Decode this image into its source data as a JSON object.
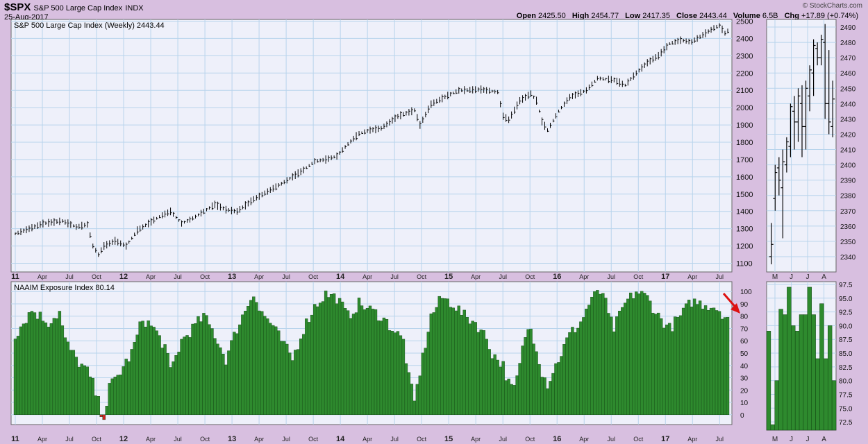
{
  "header": {
    "symbol": "$SPX",
    "name": "S&P 500 Large Cap Index",
    "exchange": "INDX",
    "date": "25-Aug-2017",
    "watermark": "© StockCharts.com",
    "ohlc": {
      "open_label": "Open",
      "open": "2425.50",
      "high_label": "High",
      "high": "2454.77",
      "low_label": "Low",
      "low": "2417.35",
      "close_label": "Close",
      "close": "2443.44",
      "volume_label": "Volume",
      "volume": "6.5B",
      "chg_label": "Chg",
      "chg": "+17.89 (+0.74%)"
    }
  },
  "colors": {
    "page_bg": "#d8bfe0",
    "plot_bg": "#eef0fa",
    "grid": "#b8d4ec",
    "bar_green": "#2e8a2e",
    "bar_red": "#cc2222",
    "arrow": "#dd1111"
  },
  "chart_data": [
    {
      "type": "line",
      "title": "S&P 500 Large Cap Index (Weekly) 2443.44",
      "ylim": [
        1050,
        2510
      ],
      "y_ticks": [
        1100,
        1200,
        1300,
        1400,
        1500,
        1600,
        1700,
        1800,
        1900,
        2000,
        2100,
        2200,
        2300,
        2400,
        2500
      ],
      "x_ticks": [
        "11",
        "Apr",
        "Jul",
        "Oct",
        "12",
        "Apr",
        "Jul",
        "Oct",
        "13",
        "Apr",
        "Jul",
        "Oct",
        "14",
        "Apr",
        "Jul",
        "Oct",
        "15",
        "Apr",
        "Jul",
        "Oct",
        "16",
        "Apr",
        "Jul",
        "Oct",
        "17",
        "Apr",
        "Jul"
      ],
      "x_year_labels": [
        "11",
        "12",
        "13",
        "14",
        "15",
        "16",
        "17"
      ],
      "keypoints": [
        {
          "x": 0,
          "y": 1270
        },
        {
          "x": 10,
          "y": 1330
        },
        {
          "x": 17,
          "y": 1345
        },
        {
          "x": 22,
          "y": 1310
        },
        {
          "x": 26,
          "y": 1325
        },
        {
          "x": 28,
          "y": 1200
        },
        {
          "x": 30,
          "y": 1150
        },
        {
          "x": 32,
          "y": 1200
        },
        {
          "x": 36,
          "y": 1230
        },
        {
          "x": 40,
          "y": 1200
        },
        {
          "x": 44,
          "y": 1290
        },
        {
          "x": 52,
          "y": 1370
        },
        {
          "x": 56,
          "y": 1400
        },
        {
          "x": 60,
          "y": 1330
        },
        {
          "x": 64,
          "y": 1360
        },
        {
          "x": 72,
          "y": 1440
        },
        {
          "x": 76,
          "y": 1410
        },
        {
          "x": 80,
          "y": 1400
        },
        {
          "x": 86,
          "y": 1470
        },
        {
          "x": 96,
          "y": 1560
        },
        {
          "x": 100,
          "y": 1600
        },
        {
          "x": 104,
          "y": 1640
        },
        {
          "x": 108,
          "y": 1690
        },
        {
          "x": 112,
          "y": 1700
        },
        {
          "x": 116,
          "y": 1720
        },
        {
          "x": 120,
          "y": 1790
        },
        {
          "x": 124,
          "y": 1850
        },
        {
          "x": 128,
          "y": 1870
        },
        {
          "x": 132,
          "y": 1880
        },
        {
          "x": 138,
          "y": 1950
        },
        {
          "x": 144,
          "y": 1985
        },
        {
          "x": 146,
          "y": 1900
        },
        {
          "x": 150,
          "y": 2020
        },
        {
          "x": 156,
          "y": 2070
        },
        {
          "x": 160,
          "y": 2100
        },
        {
          "x": 168,
          "y": 2105
        },
        {
          "x": 174,
          "y": 2090
        },
        {
          "x": 176,
          "y": 1950
        },
        {
          "x": 178,
          "y": 1930
        },
        {
          "x": 182,
          "y": 2040
        },
        {
          "x": 186,
          "y": 2080
        },
        {
          "x": 188,
          "y": 2040
        },
        {
          "x": 190,
          "y": 1920
        },
        {
          "x": 192,
          "y": 1870
        },
        {
          "x": 196,
          "y": 1980
        },
        {
          "x": 200,
          "y": 2060
        },
        {
          "x": 206,
          "y": 2100
        },
        {
          "x": 210,
          "y": 2170
        },
        {
          "x": 216,
          "y": 2160
        },
        {
          "x": 220,
          "y": 2130
        },
        {
          "x": 224,
          "y": 2200
        },
        {
          "x": 228,
          "y": 2260
        },
        {
          "x": 232,
          "y": 2300
        },
        {
          "x": 236,
          "y": 2370
        },
        {
          "x": 240,
          "y": 2390
        },
        {
          "x": 244,
          "y": 2380
        },
        {
          "x": 248,
          "y": 2420
        },
        {
          "x": 252,
          "y": 2460
        },
        {
          "x": 254,
          "y": 2475
        },
        {
          "x": 256,
          "y": 2430
        },
        {
          "x": 257,
          "y": 2443
        }
      ]
    },
    {
      "type": "bar",
      "title": "NAAIM Exposure Index 80.14",
      "ylim": [
        -8,
        108
      ],
      "y_ticks": [
        0,
        10,
        20,
        30,
        40,
        50,
        60,
        70,
        80,
        90,
        100
      ],
      "x_ticks": [
        "11",
        "Apr",
        "Jul",
        "Oct",
        "12",
        "Apr",
        "Jul",
        "Oct",
        "13",
        "Apr",
        "Jul",
        "Oct",
        "14",
        "Apr",
        "Jul",
        "Oct",
        "15",
        "Apr",
        "Jul",
        "Oct",
        "16",
        "Apr",
        "Jul",
        "Oct",
        "17",
        "Apr",
        "Jul"
      ],
      "keypoints": [
        {
          "x": 0,
          "y": 65
        },
        {
          "x": 6,
          "y": 85
        },
        {
          "x": 12,
          "y": 75
        },
        {
          "x": 16,
          "y": 83
        },
        {
          "x": 18,
          "y": 60
        },
        {
          "x": 22,
          "y": 45
        },
        {
          "x": 26,
          "y": 35
        },
        {
          "x": 28,
          "y": 25
        },
        {
          "x": 30,
          "y": 10
        },
        {
          "x": 32,
          "y": -4
        },
        {
          "x": 34,
          "y": 22
        },
        {
          "x": 38,
          "y": 35
        },
        {
          "x": 42,
          "y": 50
        },
        {
          "x": 46,
          "y": 78
        },
        {
          "x": 50,
          "y": 70
        },
        {
          "x": 54,
          "y": 55
        },
        {
          "x": 56,
          "y": 35
        },
        {
          "x": 60,
          "y": 60
        },
        {
          "x": 64,
          "y": 70
        },
        {
          "x": 68,
          "y": 80
        },
        {
          "x": 72,
          "y": 65
        },
        {
          "x": 76,
          "y": 45
        },
        {
          "x": 80,
          "y": 70
        },
        {
          "x": 84,
          "y": 90
        },
        {
          "x": 86,
          "y": 100
        },
        {
          "x": 88,
          "y": 85
        },
        {
          "x": 92,
          "y": 75
        },
        {
          "x": 96,
          "y": 60
        },
        {
          "x": 100,
          "y": 45
        },
        {
          "x": 104,
          "y": 70
        },
        {
          "x": 108,
          "y": 88
        },
        {
          "x": 112,
          "y": 98
        },
        {
          "x": 116,
          "y": 95
        },
        {
          "x": 120,
          "y": 80
        },
        {
          "x": 124,
          "y": 90
        },
        {
          "x": 128,
          "y": 85
        },
        {
          "x": 132,
          "y": 80
        },
        {
          "x": 136,
          "y": 70
        },
        {
          "x": 140,
          "y": 60
        },
        {
          "x": 142,
          "y": 30
        },
        {
          "x": 144,
          "y": 10
        },
        {
          "x": 146,
          "y": 35
        },
        {
          "x": 150,
          "y": 80
        },
        {
          "x": 154,
          "y": 95
        },
        {
          "x": 158,
          "y": 90
        },
        {
          "x": 162,
          "y": 80
        },
        {
          "x": 166,
          "y": 75
        },
        {
          "x": 170,
          "y": 62
        },
        {
          "x": 172,
          "y": 50
        },
        {
          "x": 176,
          "y": 40
        },
        {
          "x": 178,
          "y": 25
        },
        {
          "x": 180,
          "y": 20
        },
        {
          "x": 182,
          "y": 40
        },
        {
          "x": 184,
          "y": 65
        },
        {
          "x": 186,
          "y": 70
        },
        {
          "x": 188,
          "y": 55
        },
        {
          "x": 190,
          "y": 35
        },
        {
          "x": 192,
          "y": 25
        },
        {
          "x": 194,
          "y": 35
        },
        {
          "x": 196,
          "y": 45
        },
        {
          "x": 198,
          "y": 55
        },
        {
          "x": 200,
          "y": 65
        },
        {
          "x": 204,
          "y": 75
        },
        {
          "x": 208,
          "y": 95
        },
        {
          "x": 212,
          "y": 100
        },
        {
          "x": 214,
          "y": 80
        },
        {
          "x": 216,
          "y": 70
        },
        {
          "x": 220,
          "y": 90
        },
        {
          "x": 224,
          "y": 100
        },
        {
          "x": 228,
          "y": 95
        },
        {
          "x": 232,
          "y": 80
        },
        {
          "x": 236,
          "y": 70
        },
        {
          "x": 240,
          "y": 80
        },
        {
          "x": 244,
          "y": 92
        },
        {
          "x": 248,
          "y": 90
        },
        {
          "x": 252,
          "y": 88
        },
        {
          "x": 254,
          "y": 85
        },
        {
          "x": 256,
          "y": 80
        },
        {
          "x": 257,
          "y": 80
        }
      ],
      "negative_bar_index": 32
    },
    {
      "type": "line",
      "title": "",
      "ylim": [
        2330,
        2495
      ],
      "y_ticks": [
        2340,
        2350,
        2360,
        2370,
        2380,
        2390,
        2400,
        2410,
        2420,
        2430,
        2440,
        2450,
        2460,
        2470,
        2480,
        2490
      ],
      "x_ticks": [
        "M",
        "J",
        "J",
        "A"
      ],
      "bars": [
        {
          "h": 2362,
          "l": 2335,
          "o": 2340,
          "c": 2348
        },
        {
          "h": 2400,
          "l": 2370,
          "o": 2378,
          "c": 2395
        },
        {
          "h": 2405,
          "l": 2380,
          "o": 2398,
          "c": 2390
        },
        {
          "h": 2410,
          "l": 2352,
          "o": 2385,
          "c": 2402
        },
        {
          "h": 2418,
          "l": 2395,
          "o": 2400,
          "c": 2415
        },
        {
          "h": 2440,
          "l": 2405,
          "o": 2412,
          "c": 2438
        },
        {
          "h": 2445,
          "l": 2410,
          "o": 2435,
          "c": 2428
        },
        {
          "h": 2450,
          "l": 2415,
          "o": 2428,
          "c": 2445
        },
        {
          "h": 2452,
          "l": 2405,
          "o": 2440,
          "c": 2425
        },
        {
          "h": 2455,
          "l": 2410,
          "o": 2425,
          "c": 2450
        },
        {
          "h": 2465,
          "l": 2435,
          "o": 2445,
          "c": 2462
        },
        {
          "h": 2482,
          "l": 2445,
          "o": 2460,
          "c": 2478
        },
        {
          "h": 2480,
          "l": 2465,
          "o": 2476,
          "c": 2470
        },
        {
          "h": 2485,
          "l": 2465,
          "o": 2470,
          "c": 2482
        },
        {
          "h": 2492,
          "l": 2430,
          "o": 2480,
          "c": 2440
        },
        {
          "h": 2475,
          "l": 2420,
          "o": 2440,
          "c": 2428
        },
        {
          "h": 2455,
          "l": 2418,
          "o": 2425,
          "c": 2443
        }
      ]
    },
    {
      "type": "bar",
      "title": "",
      "ylim": [
        71,
        98
      ],
      "y_ticks": [
        72.5,
        75.0,
        77.5,
        80.0,
        82.5,
        85.0,
        87.5,
        90.0,
        92.5,
        95.0,
        97.5
      ],
      "x_ticks": [
        "M",
        "J",
        "J",
        "A"
      ],
      "values": [
        89,
        72,
        80,
        93,
        92,
        97,
        90,
        89,
        92,
        92,
        97,
        92,
        84,
        94,
        84,
        90,
        80
      ]
    }
  ]
}
